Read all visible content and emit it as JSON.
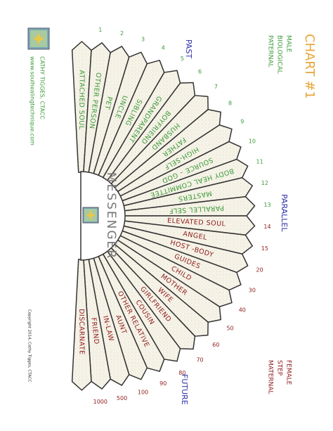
{
  "header": {
    "title": "CHART #1",
    "left_group": [
      "MALE",
      "BIOLOGICAL",
      "PATERNAL"
    ],
    "right_group": [
      "FEMALE",
      "STEP",
      "MATERNAL"
    ]
  },
  "author": {
    "name": "CATHY TIGGES, CTACC",
    "website": "www.soulhealingtechnique.com",
    "copyright": "Copyright 2014, Cathy Tigges, CTACC"
  },
  "center": {
    "label": "MESSENGER"
  },
  "zones": {
    "past": "PAST",
    "parallel": "PARALLEL",
    "future": "FUTURE"
  },
  "petals": {
    "left": [
      "ATTACHED SOUL",
      "OTHER PERSON",
      "PET",
      "UNCLE",
      "SIBLING",
      "GRANDPARENT",
      "BOYFRIEND",
      "HUSBAND",
      "FATHER",
      "HIGH-SELF",
      "SOURCE – GOD",
      "BODY HEAL COMMITTEE",
      "MASTERS",
      "PARALLEL SELF"
    ],
    "right": [
      "ELEVATED SOUL",
      "ANGEL",
      "HOST -BODY",
      "GUIDES",
      "CHILD",
      "MOTHER",
      "WIFE",
      "GIRLFRIEND",
      "COUSIN",
      "OTHER RELATIVE",
      "AUNT",
      "IN-LAW",
      "FRIEND",
      "DISCARNATE"
    ]
  },
  "numbers": [
    1,
    2,
    3,
    4,
    5,
    6,
    7,
    8,
    9,
    10,
    11,
    12,
    13,
    14,
    15,
    20,
    30,
    40,
    50,
    60,
    70,
    80,
    90,
    100,
    500,
    1000
  ]
}
